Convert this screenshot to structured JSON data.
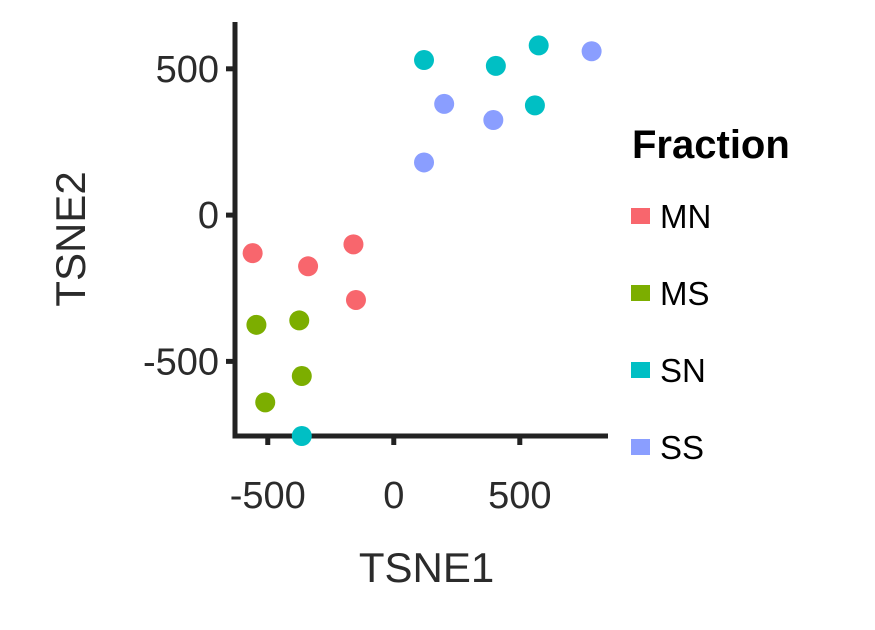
{
  "chart_data": {
    "type": "scatter",
    "xlabel": "TSNE1",
    "ylabel": "TSNE2",
    "xlim": [
      -630,
      850
    ],
    "ylim": [
      -755,
      660
    ],
    "xticks": [
      -500,
      0,
      500
    ],
    "yticks": [
      500,
      0,
      -500
    ],
    "xtick_labels": [
      "-500",
      "0",
      "500"
    ],
    "ytick_labels": [
      "500",
      "0",
      "-500"
    ],
    "grid": false,
    "legend": {
      "title": "Fraction",
      "placement": "right"
    },
    "series": [
      {
        "name": "MN",
        "color": "#F8666D",
        "points": [
          [
            -560,
            -130
          ],
          [
            -340,
            -175
          ],
          [
            -160,
            -100
          ],
          [
            -150,
            -290
          ]
        ]
      },
      {
        "name": "MS",
        "color": "#7CAE00",
        "points": [
          [
            -545,
            -375
          ],
          [
            -375,
            -360
          ],
          [
            -365,
            -550
          ],
          [
            -510,
            -640
          ]
        ]
      },
      {
        "name": "SN",
        "color": "#00BFC4",
        "points": [
          [
            120,
            530
          ],
          [
            405,
            510
          ],
          [
            575,
            580
          ],
          [
            560,
            375
          ],
          [
            -365,
            -755
          ]
        ]
      },
      {
        "name": "SS",
        "color": "#8A9EFF",
        "points": [
          [
            200,
            380
          ],
          [
            395,
            325
          ],
          [
            785,
            560
          ],
          [
            120,
            180
          ]
        ]
      }
    ]
  }
}
